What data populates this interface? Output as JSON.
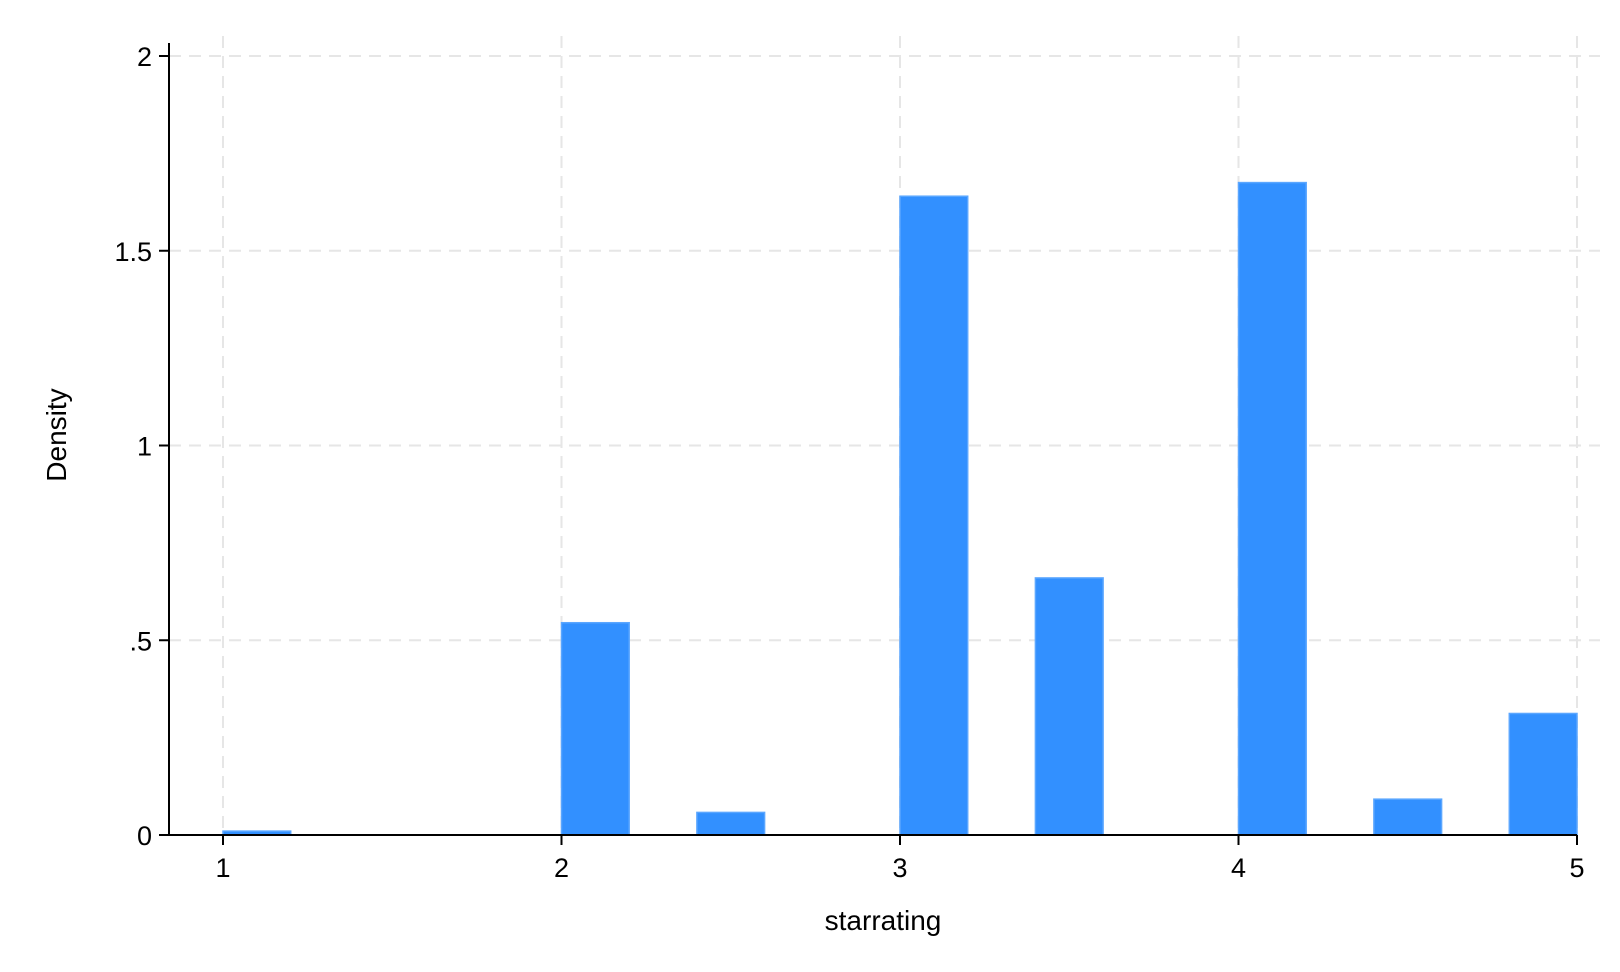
{
  "chart_data": {
    "type": "bar",
    "subtype": "histogram",
    "title": "",
    "xlabel": "starrating",
    "ylabel": "Density",
    "xlim": [
      1,
      5
    ],
    "ylim": [
      0,
      2
    ],
    "bin_width": 0.2,
    "x_ticks": [
      1,
      2,
      3,
      4,
      5
    ],
    "x_tick_labels": [
      "1",
      "2",
      "3",
      "4",
      "5"
    ],
    "y_ticks": [
      0,
      0.5,
      1,
      1.5,
      2
    ],
    "y_tick_labels": [
      "0",
      ".5",
      "1",
      "1.5",
      "2"
    ],
    "grid": true,
    "bar_color": "#3290ff",
    "bins": [
      {
        "start": 1.0,
        "end": 1.2,
        "value": 0.01
      },
      {
        "start": 2.0,
        "end": 2.2,
        "value": 0.545
      },
      {
        "start": 2.4,
        "end": 2.6,
        "value": 0.058
      },
      {
        "start": 3.0,
        "end": 3.2,
        "value": 1.64
      },
      {
        "start": 3.4,
        "end": 3.6,
        "value": 0.66
      },
      {
        "start": 4.0,
        "end": 4.2,
        "value": 1.675
      },
      {
        "start": 4.4,
        "end": 4.6,
        "value": 0.092
      },
      {
        "start": 4.8,
        "end": 5.0,
        "value": 0.312
      }
    ]
  }
}
